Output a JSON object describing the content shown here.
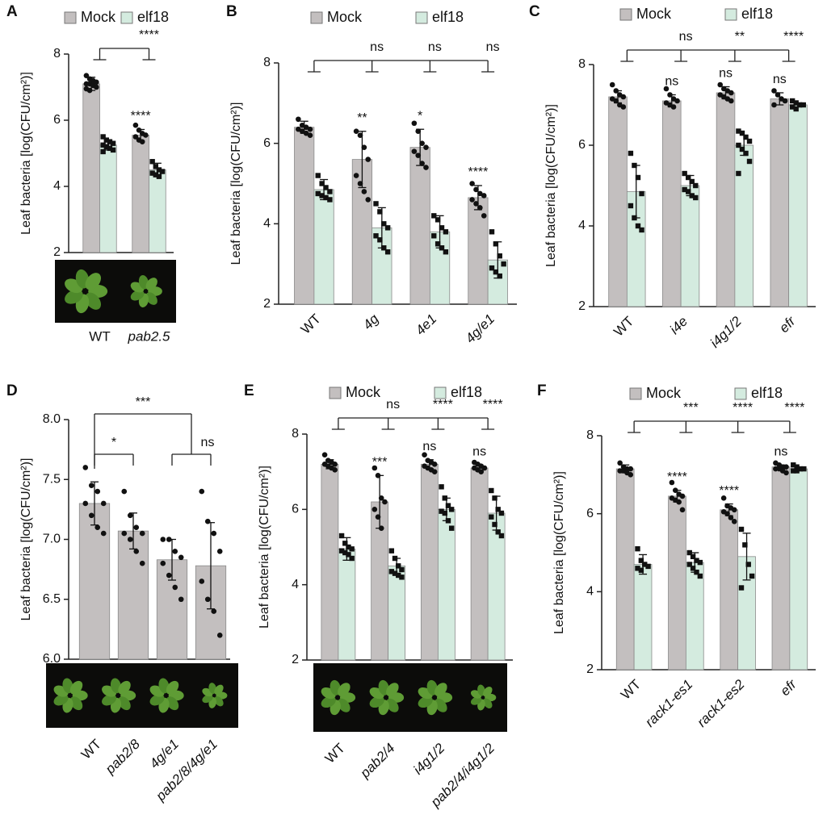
{
  "chart_data": [
    {
      "type": "bar",
      "panel": "A",
      "ylabel": "Leaf bacteria [log(CFU/cm²)]",
      "ylim": [
        2,
        8
      ],
      "yticks": [
        2,
        4,
        6,
        8
      ],
      "categories": [
        "WT",
        "pab2.5"
      ],
      "series": [
        {
          "name": "Mock",
          "color": "#c3bfbf",
          "values": [
            7.1,
            5.55
          ],
          "errors": [
            0.2,
            0.17
          ],
          "points": [
            [
              7.35,
              7.25,
              7.2,
              7.15,
              7.1,
              7.1,
              7.05,
              7.0,
              6.95,
              6.9
            ],
            [
              5.85,
              5.7,
              5.6,
              5.55,
              5.5,
              5.4,
              5.35
            ]
          ]
        },
        {
          "name": "elf18",
          "color": "#d4ebdf",
          "values": [
            5.25,
            4.5
          ],
          "errors": [
            0.15,
            0.2
          ],
          "points": [
            [
              5.5,
              5.4,
              5.35,
              5.3,
              5.25,
              5.2,
              5.15,
              5.1,
              5.05
            ],
            [
              4.75,
              4.6,
              4.5,
              4.45,
              4.4,
              4.35,
              4.3
            ]
          ]
        }
      ],
      "significance": [
        null,
        "****"
      ],
      "comparisons": [
        null,
        "****"
      ]
    },
    {
      "type": "bar",
      "panel": "B",
      "ylabel": "Leaf bacteria [log(CFU/cm²)]",
      "ylim": [
        2,
        8
      ],
      "yticks": [
        2,
        4,
        6,
        8
      ],
      "categories": [
        "WT",
        "4g",
        "4e1",
        "4g/e1"
      ],
      "series": [
        {
          "name": "Mock",
          "color": "#c3bfbf",
          "values": [
            6.4,
            5.6,
            5.9,
            4.65
          ],
          "errors": [
            0.15,
            0.7,
            0.45,
            0.3
          ],
          "points": [
            [
              6.6,
              6.45,
              6.4,
              6.35,
              6.35,
              6.3,
              6.25,
              6.2
            ],
            [
              6.3,
              6.2,
              5.9,
              5.6,
              5.2,
              5.0,
              4.8,
              4.6
            ],
            [
              6.5,
              6.3,
              6.0,
              5.9,
              5.8,
              5.7,
              5.5,
              5.4
            ],
            [
              5.0,
              4.85,
              4.75,
              4.7,
              4.6,
              4.5,
              4.4,
              4.2
            ]
          ]
        },
        {
          "name": "elf18",
          "color": "#d4ebdf",
          "values": [
            4.85,
            3.9,
            3.8,
            3.1
          ],
          "errors": [
            0.25,
            0.5,
            0.4,
            0.45
          ],
          "points": [
            [
              5.2,
              5.0,
              4.9,
              4.8,
              4.75,
              4.7,
              4.65,
              4.6
            ],
            [
              4.5,
              4.3,
              4.0,
              3.9,
              3.7,
              3.6,
              3.4,
              3.3
            ],
            [
              4.2,
              4.1,
              3.9,
              3.8,
              3.7,
              3.5,
              3.4,
              3.3
            ],
            [
              3.8,
              3.5,
              3.2,
              3.0,
              2.9,
              2.8,
              2.7
            ]
          ]
        }
      ],
      "significance": [
        null,
        "**",
        "*",
        "****"
      ],
      "comparisons": [
        null,
        "ns",
        "ns",
        "ns"
      ]
    },
    {
      "type": "bar",
      "panel": "C",
      "ylabel": "Leaf bacteria [log(CFU/cm²)]",
      "ylim": [
        2,
        8
      ],
      "yticks": [
        2,
        4,
        6,
        8
      ],
      "categories": [
        "WT",
        "i4e",
        "i4g1/2",
        "efr"
      ],
      "series": [
        {
          "name": "Mock",
          "color": "#c3bfbf",
          "values": [
            7.2,
            7.1,
            7.3,
            7.15
          ],
          "errors": [
            0.15,
            0.15,
            0.15,
            0.15
          ],
          "points": [
            [
              7.5,
              7.35,
              7.25,
              7.2,
              7.15,
              7.1,
              7.0,
              6.95
            ],
            [
              7.4,
              7.25,
              7.15,
              7.1,
              7.05,
              7.0,
              6.95
            ],
            [
              7.5,
              7.4,
              7.35,
              7.3,
              7.25,
              7.2,
              7.15,
              7.1
            ],
            [
              7.35,
              7.25,
              7.15,
              7.1,
              7.0
            ]
          ]
        },
        {
          "name": "elf18",
          "color": "#d4ebdf",
          "values": [
            4.85,
            5.0,
            6.0,
            7.0
          ],
          "errors": [
            0.65,
            0.25,
            0.25,
            0.05
          ],
          "points": [
            [
              5.8,
              5.5,
              5.2,
              4.8,
              4.5,
              4.2,
              4.0,
              3.9
            ],
            [
              5.3,
              5.2,
              5.1,
              5.0,
              4.9,
              4.85,
              4.75,
              4.7
            ],
            [
              6.35,
              6.3,
              6.2,
              6.1,
              6.0,
              5.9,
              5.8,
              5.6,
              5.3
            ],
            [
              7.1,
              7.05,
              7.0,
              7.0,
              6.95,
              6.9
            ]
          ]
        }
      ],
      "significance": [
        null,
        "ns",
        "ns",
        "ns"
      ],
      "comparisons": [
        null,
        "ns",
        "**",
        "****"
      ]
    },
    {
      "type": "bar",
      "panel": "D",
      "ylabel": "Leaf bacteria [log(CFU/cm²)]",
      "ylim": [
        6,
        8
      ],
      "yticks": [
        {
          "value": 6,
          "label": "6.0"
        },
        {
          "value": 6.5,
          "label": "6.5"
        },
        {
          "value": 7,
          "label": "7.0"
        },
        {
          "value": 7.5,
          "label": "7.5"
        },
        {
          "value": 8,
          "label": "8.0"
        }
      ],
      "categories": [
        "WT",
        "pab2/8",
        "4g/e1",
        "pab2/8/4g/e1"
      ],
      "series": [
        {
          "name": "Mock",
          "color": "#c3bfbf",
          "values": [
            7.3,
            7.07,
            6.83,
            6.78
          ],
          "errors": [
            0.18,
            0.15,
            0.17,
            0.36
          ],
          "points": [
            [
              7.6,
              7.45,
              7.4,
              7.3,
              7.3,
              7.2,
              7.1,
              7.05
            ],
            [
              7.4,
              7.2,
              7.1,
              7.05,
              7.05,
              7.0,
              6.9,
              6.8
            ],
            [
              7.0,
              7.0,
              6.9,
              6.85,
              6.8,
              6.7,
              6.6,
              6.5
            ],
            [
              7.4,
              7.15,
              7.05,
              6.9,
              6.65,
              6.5,
              6.4,
              6.2
            ]
          ]
        }
      ],
      "brackets": [
        {
          "from": 0,
          "to": 1,
          "label": "*"
        },
        {
          "from": 0,
          "to": 3,
          "label": "***"
        },
        {
          "from": 2,
          "to": 3,
          "label": "ns"
        }
      ]
    },
    {
      "type": "bar",
      "panel": "E",
      "ylabel": "Leaf bacteria [log(CFU/cm²)]",
      "ylim": [
        2,
        8
      ],
      "yticks": [
        2,
        4,
        6,
        8
      ],
      "categories": [
        "WT",
        "pab2/4",
        "i4g1/2",
        "pab2/4/i4g1/2"
      ],
      "series": [
        {
          "name": "Mock",
          "color": "#c3bfbf",
          "values": [
            7.2,
            6.2,
            7.2,
            7.1
          ],
          "errors": [
            0.12,
            0.7,
            0.12,
            0.08
          ],
          "points": [
            [
              7.45,
              7.3,
              7.25,
              7.2,
              7.2,
              7.15,
              7.1,
              7.05
            ],
            [
              7.1,
              6.9,
              6.3,
              6.2,
              6.0,
              5.8,
              5.5
            ],
            [
              7.45,
              7.3,
              7.25,
              7.2,
              7.15,
              7.1,
              7.05,
              7.0
            ],
            [
              7.25,
              7.2,
              7.15,
              7.1,
              7.1,
              7.05,
              7.0
            ]
          ]
        },
        {
          "name": "elf18",
          "color": "#d4ebdf",
          "values": [
            4.95,
            4.5,
            6.0,
            5.9
          ],
          "errors": [
            0.3,
            0.2,
            0.3,
            0.45
          ],
          "points": [
            [
              5.3,
              5.1,
              5.0,
              4.95,
              4.9,
              4.85,
              4.8,
              4.7
            ],
            [
              4.9,
              4.7,
              4.5,
              4.4,
              4.35,
              4.3,
              4.25,
              4.2
            ],
            [
              6.6,
              6.3,
              6.1,
              6.0,
              5.95,
              5.9,
              5.7,
              5.5
            ],
            [
              6.5,
              6.3,
              6.0,
              5.9,
              5.8,
              5.6,
              5.4,
              5.3
            ]
          ]
        }
      ],
      "significance": [
        null,
        "***",
        "ns",
        "ns"
      ],
      "comparisons": [
        null,
        "ns",
        "****",
        "****"
      ]
    },
    {
      "type": "bar",
      "panel": "F",
      "ylabel": "Leaf bacteria [log(CFU/cm²)]",
      "ylim": [
        2,
        8
      ],
      "yticks": [
        2,
        4,
        6,
        8
      ],
      "categories": [
        "WT",
        "rack1-es1",
        "rack1-es2",
        "efr"
      ],
      "series": [
        {
          "name": "Mock",
          "color": "#c3bfbf",
          "values": [
            7.15,
            6.45,
            6.1,
            7.2
          ],
          "errors": [
            0.1,
            0.15,
            0.15,
            0.05
          ],
          "points": [
            [
              7.3,
              7.2,
              7.15,
              7.15,
              7.1,
              7.1,
              7.05,
              7.0
            ],
            [
              6.8,
              6.6,
              6.5,
              6.45,
              6.4,
              6.35,
              6.3,
              6.1
            ],
            [
              6.4,
              6.2,
              6.15,
              6.1,
              6.05,
              6.0,
              5.9,
              5.8
            ],
            [
              7.3,
              7.25,
              7.2,
              7.2,
              7.15,
              7.15,
              7.1,
              7.05
            ]
          ]
        },
        {
          "name": "elf18",
          "color": "#d4ebdf",
          "values": [
            4.7,
            4.75,
            4.9,
            7.15
          ],
          "errors": [
            0.25,
            0.25,
            0.6,
            0.05
          ],
          "points": [
            [
              5.1,
              4.8,
              4.7,
              4.65,
              4.6,
              4.55
            ],
            [
              5.0,
              4.9,
              4.8,
              4.75,
              4.7,
              4.6,
              4.5,
              4.4
            ],
            [
              5.6,
              5.2,
              4.7,
              4.4,
              4.1
            ],
            [
              7.25,
              7.2,
              7.15,
              7.15,
              7.1,
              7.1
            ]
          ]
        }
      ],
      "significance": [
        null,
        "****",
        "****",
        "ns"
      ],
      "comparisons": [
        null,
        "***",
        "****",
        "****"
      ]
    }
  ]
}
